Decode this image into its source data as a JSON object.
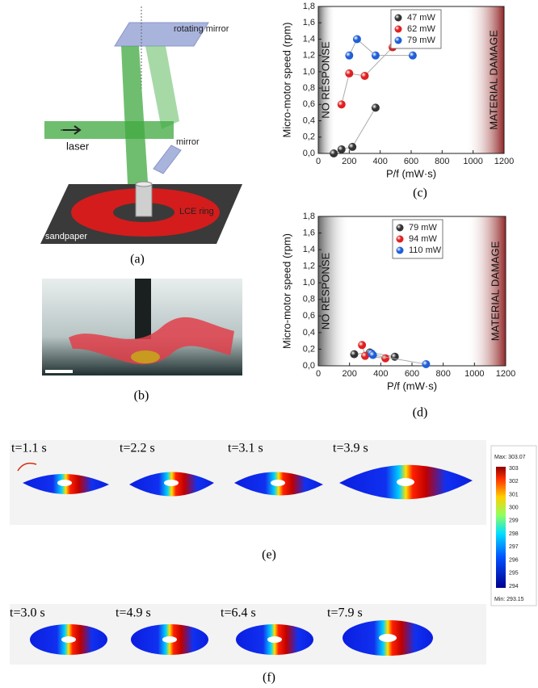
{
  "diagram": {
    "rotating_mirror": "rotating mirror",
    "mirror": "mirror",
    "laser": "laser",
    "ring": "LCE ring",
    "sandpaper": "sandpaper"
  },
  "captions": {
    "a": "(a)",
    "b": "(b)",
    "c": "(c)",
    "d": "(d)",
    "e": "(e)",
    "f": "(f)"
  },
  "simulations": {
    "e_times": [
      "t=1.1 s",
      "t=2.2 s",
      "t=3.1 s",
      "t=3.9 s"
    ],
    "f_times": [
      "t=3.0 s",
      "t=4.9 s",
      "t=6.4 s",
      "t=7.9 s"
    ],
    "colorbar": {
      "max_label": "Max: 303.07",
      "min_label": "Min: 293.15",
      "ticks": [
        "303",
        "302",
        "301",
        "300",
        "299",
        "298",
        "297",
        "296",
        "295",
        "294"
      ]
    }
  },
  "chart_data": [
    {
      "type": "scatter-line",
      "y_label": "Micro-motor speed (rpm)",
      "x_label": "P/f (mW·s)",
      "xlim": [
        0,
        1200
      ],
      "xticks": [
        0,
        200,
        400,
        600,
        800,
        1000,
        1200
      ],
      "ylim": [
        0,
        1.8
      ],
      "yticks": [
        {
          "value": 0,
          "label": "0,0"
        },
        {
          "value": 0.2,
          "label": "0,2"
        },
        {
          "value": 0.4,
          "label": "0,4"
        },
        {
          "value": 0.6,
          "label": "0,6"
        },
        {
          "value": 0.8,
          "label": "0,8"
        },
        {
          "value": 1.0,
          "label": "1,0"
        },
        {
          "value": 1.2,
          "label": "1,2"
        },
        {
          "value": 1.4,
          "label": "1,4"
        },
        {
          "value": 1.6,
          "label": "1,6"
        },
        {
          "value": 1.8,
          "label": "1,8"
        }
      ],
      "legend": "upper right",
      "regions": [
        {
          "label": "NO RESPONSE",
          "range": [
            0,
            110
          ],
          "color": "#555555"
        },
        {
          "label": "MATERIAL DAMAGE",
          "range": [
            950,
            1200
          ],
          "color": "#8b1a1a"
        }
      ],
      "series": [
        {
          "name": "47 mW",
          "color": "#333333",
          "x": [
            100,
            150,
            220,
            370
          ],
          "values": [
            0.0,
            0.05,
            0.08,
            0.56
          ]
        },
        {
          "name": "62 mW",
          "color": "#e02020",
          "x": [
            150,
            200,
            300,
            480
          ],
          "values": [
            0.6,
            0.98,
            0.95,
            1.3
          ]
        },
        {
          "name": "79 mW",
          "color": "#1f5fd6",
          "x": [
            200,
            250,
            370,
            610
          ],
          "values": [
            1.2,
            1.4,
            1.2,
            1.2
          ]
        }
      ]
    },
    {
      "type": "scatter-line",
      "y_label": "Micro-motor speed (rpm)",
      "x_label": "P/f (mW·s)",
      "xlim": [
        0,
        1200
      ],
      "xticks": [
        0,
        200,
        400,
        600,
        800,
        1000,
        1200
      ],
      "ylim": [
        0,
        1.8
      ],
      "yticks": [
        {
          "value": 0,
          "label": "0,0"
        },
        {
          "value": 0.2,
          "label": "0,2"
        },
        {
          "value": 0.4,
          "label": "0,4"
        },
        {
          "value": 0.6,
          "label": "0,6"
        },
        {
          "value": 0.8,
          "label": "0,8"
        },
        {
          "value": 1.0,
          "label": "1,0"
        },
        {
          "value": 1.2,
          "label": "1,2"
        },
        {
          "value": 1.4,
          "label": "1,4"
        },
        {
          "value": 1.6,
          "label": "1,6"
        },
        {
          "value": 1.8,
          "label": "1,8"
        }
      ],
      "legend": "upper right",
      "regions": [
        {
          "label": "NO RESPONSE",
          "range": [
            0,
            200
          ],
          "color": "#555555"
        },
        {
          "label": "MATERIAL DAMAGE",
          "range": [
            950,
            1200
          ],
          "color": "#8b1a1a"
        }
      ],
      "series": [
        {
          "name": "79 mW",
          "color": "#333333",
          "x": [
            230,
            330,
            490
          ],
          "values": [
            0.14,
            0.16,
            0.11
          ]
        },
        {
          "name": "94 mW",
          "color": "#e02020",
          "x": [
            280,
            300,
            430
          ],
          "values": [
            0.25,
            0.12,
            0.09
          ]
        },
        {
          "name": "110 mW",
          "color": "#1f5fd6",
          "x": [
            340,
            350,
            690
          ],
          "values": [
            0.15,
            0.13,
            0.02
          ]
        }
      ]
    }
  ]
}
